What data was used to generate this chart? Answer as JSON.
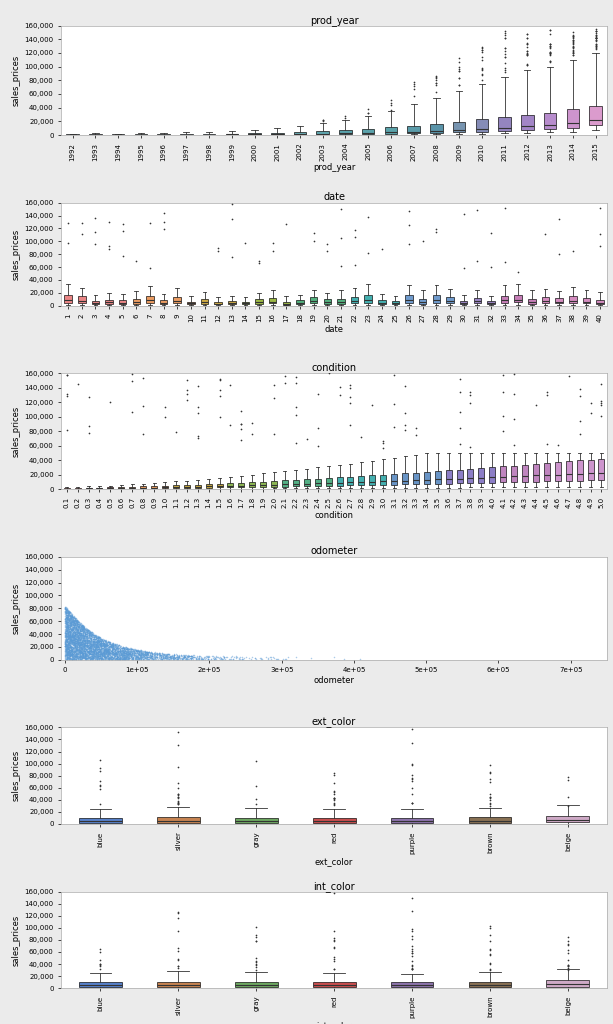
{
  "figure_bg": "#ebebeb",
  "axes_bg": "#ffffff",
  "plot_titles": [
    "prod_year",
    "date",
    "condition",
    "odometer",
    "ext_color",
    "int_color"
  ],
  "xlabel_labels": [
    "prod_year",
    "date",
    "condition",
    "odometer",
    "ext_color",
    "int_color"
  ],
  "ylabel_label": "sales_prices",
  "ylim_main": [
    0,
    160000
  ],
  "yticks_main": [
    0,
    20000,
    40000,
    60000,
    80000,
    100000,
    120000,
    140000,
    160000
  ],
  "prod_year_years": [
    1992,
    1993,
    1994,
    1995,
    1996,
    1997,
    1998,
    1999,
    2000,
    2001,
    2002,
    2003,
    2004,
    2005,
    2006,
    2007,
    2008,
    2009,
    2010,
    2011,
    2012,
    2013,
    2014,
    2015
  ],
  "prod_year_medians": [
    400,
    500,
    450,
    450,
    500,
    600,
    700,
    800,
    900,
    1100,
    1400,
    1900,
    2400,
    3000,
    4000,
    5000,
    6000,
    7500,
    9000,
    11000,
    13000,
    15000,
    18000,
    22000
  ],
  "prod_year_q1": [
    200,
    250,
    200,
    200,
    250,
    300,
    350,
    400,
    450,
    550,
    650,
    850,
    1100,
    1400,
    1900,
    2400,
    2900,
    3900,
    4900,
    6300,
    7800,
    8800,
    10800,
    14800
  ],
  "prod_year_q3": [
    900,
    1100,
    900,
    900,
    1100,
    1400,
    1700,
    1900,
    2400,
    2900,
    3800,
    5200,
    6700,
    8700,
    11700,
    13700,
    15700,
    18700,
    22700,
    26700,
    29700,
    32700,
    37700,
    42700
  ],
  "prod_year_whislo": [
    50,
    60,
    50,
    50,
    60,
    80,
    90,
    100,
    120,
    150,
    200,
    300,
    400,
    500,
    700,
    900,
    1100,
    1400,
    1900,
    2400,
    3400,
    3900,
    4900,
    6900
  ],
  "prod_year_whishi": [
    1800,
    2300,
    1800,
    2300,
    2800,
    3800,
    4800,
    5800,
    7800,
    9800,
    13800,
    17800,
    21800,
    27800,
    34800,
    44800,
    54800,
    64800,
    74800,
    84800,
    94800,
    99800,
    109800,
    119800
  ],
  "date_categories": [
    "1",
    "2",
    "3",
    "4",
    "5",
    "6",
    "7",
    "8",
    "9",
    "10",
    "11",
    "12",
    "13",
    "14",
    "15",
    "16",
    "17",
    "18",
    "19",
    "20",
    "21",
    "22",
    "23",
    "24",
    "25",
    "26",
    "27",
    "28",
    "29",
    "30",
    "31",
    "32",
    "33",
    "34",
    "35",
    "36",
    "37",
    "38",
    "39",
    "40"
  ],
  "date_n": 40,
  "condition_categories": [
    "0.1",
    "0.2",
    "0.3",
    "0.4",
    "0.5",
    "0.6",
    "0.7",
    "0.8",
    "0.9",
    "1.0",
    "1.1",
    "1.2",
    "1.3",
    "1.4",
    "1.5",
    "1.6",
    "1.7",
    "1.8",
    "1.9",
    "2.0",
    "2.1",
    "2.2",
    "2.3",
    "2.4",
    "2.5",
    "2.6",
    "2.7",
    "2.8",
    "2.9",
    "3.0",
    "3.1",
    "3.2",
    "3.3",
    "3.4",
    "3.5",
    "3.6",
    "3.7",
    "3.8",
    "3.9",
    "4.0",
    "4.1",
    "4.2",
    "4.3",
    "4.4",
    "4.5",
    "4.6",
    "4.7",
    "4.8",
    "4.9",
    "5.0"
  ],
  "condition_n": 50,
  "scatter_color": "#5b9bd5",
  "ext_color_cats": [
    "blue",
    "silver",
    "gray",
    "red",
    "purple",
    "brown",
    "beige"
  ],
  "ext_color_colors": [
    "#4472c4",
    "#c0763e",
    "#5d9e50",
    "#c23b3b",
    "#8064a2",
    "#7b6040",
    "#c9a0c0"
  ],
  "int_color_cats": [
    "blue",
    "silver",
    "gray",
    "red",
    "purple",
    "brown",
    "beige"
  ],
  "int_color_colors": [
    "#4472c4",
    "#c0763e",
    "#5d9e50",
    "#c23b3b",
    "#8064a2",
    "#7b6040",
    "#c9a0c0"
  ]
}
